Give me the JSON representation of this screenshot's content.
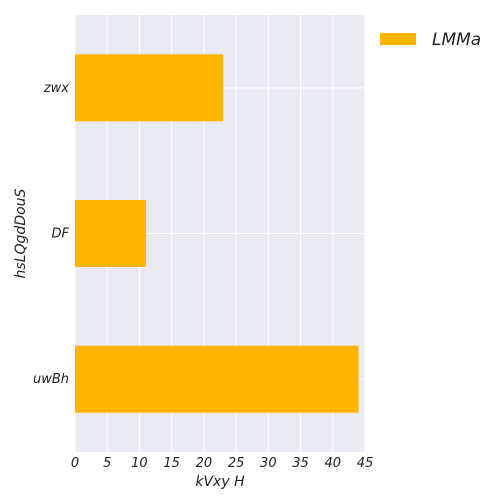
{
  "chart_data": {
    "type": "bar",
    "orientation": "horizontal",
    "categories": [
      "zwx",
      "DF",
      "uwBh"
    ],
    "series": [
      {
        "name": "LMMa",
        "values": [
          23,
          11,
          44
        ],
        "color": "#FFB400"
      }
    ],
    "xlabel": "kVxy H",
    "ylabel": "hsLQgdDouS",
    "xlim": [
      0,
      45
    ],
    "xticks": [
      0,
      5,
      10,
      15,
      20,
      25,
      30,
      35,
      40,
      45
    ],
    "grid": true,
    "legend_position": "top-right",
    "background_color": "#EAEAF2",
    "grid_color": "#FFFFFF"
  }
}
